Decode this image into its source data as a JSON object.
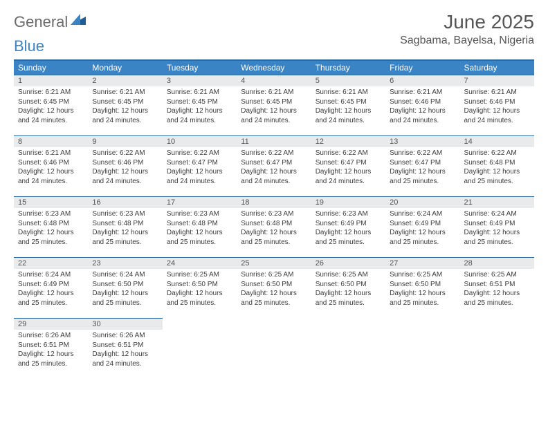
{
  "brand": {
    "general": "General",
    "blue": "Blue"
  },
  "colors": {
    "header_bg": "#3a84c5",
    "header_text": "#ffffff",
    "daynum_bg": "#e8eaec",
    "border": "#2b6aa0",
    "title": "#555555",
    "body_text": "#3b3b3b"
  },
  "title": "June 2025",
  "location": "Sagbama, Bayelsa, Nigeria",
  "weekdays": [
    "Sunday",
    "Monday",
    "Tuesday",
    "Wednesday",
    "Thursday",
    "Friday",
    "Saturday"
  ],
  "days": [
    {
      "n": "1",
      "sr": "6:21 AM",
      "ss": "6:45 PM",
      "dl": "12 hours and 24 minutes."
    },
    {
      "n": "2",
      "sr": "6:21 AM",
      "ss": "6:45 PM",
      "dl": "12 hours and 24 minutes."
    },
    {
      "n": "3",
      "sr": "6:21 AM",
      "ss": "6:45 PM",
      "dl": "12 hours and 24 minutes."
    },
    {
      "n": "4",
      "sr": "6:21 AM",
      "ss": "6:45 PM",
      "dl": "12 hours and 24 minutes."
    },
    {
      "n": "5",
      "sr": "6:21 AM",
      "ss": "6:45 PM",
      "dl": "12 hours and 24 minutes."
    },
    {
      "n": "6",
      "sr": "6:21 AM",
      "ss": "6:46 PM",
      "dl": "12 hours and 24 minutes."
    },
    {
      "n": "7",
      "sr": "6:21 AM",
      "ss": "6:46 PM",
      "dl": "12 hours and 24 minutes."
    },
    {
      "n": "8",
      "sr": "6:21 AM",
      "ss": "6:46 PM",
      "dl": "12 hours and 24 minutes."
    },
    {
      "n": "9",
      "sr": "6:22 AM",
      "ss": "6:46 PM",
      "dl": "12 hours and 24 minutes."
    },
    {
      "n": "10",
      "sr": "6:22 AM",
      "ss": "6:47 PM",
      "dl": "12 hours and 24 minutes."
    },
    {
      "n": "11",
      "sr": "6:22 AM",
      "ss": "6:47 PM",
      "dl": "12 hours and 24 minutes."
    },
    {
      "n": "12",
      "sr": "6:22 AM",
      "ss": "6:47 PM",
      "dl": "12 hours and 24 minutes."
    },
    {
      "n": "13",
      "sr": "6:22 AM",
      "ss": "6:47 PM",
      "dl": "12 hours and 25 minutes."
    },
    {
      "n": "14",
      "sr": "6:22 AM",
      "ss": "6:48 PM",
      "dl": "12 hours and 25 minutes."
    },
    {
      "n": "15",
      "sr": "6:23 AM",
      "ss": "6:48 PM",
      "dl": "12 hours and 25 minutes."
    },
    {
      "n": "16",
      "sr": "6:23 AM",
      "ss": "6:48 PM",
      "dl": "12 hours and 25 minutes."
    },
    {
      "n": "17",
      "sr": "6:23 AM",
      "ss": "6:48 PM",
      "dl": "12 hours and 25 minutes."
    },
    {
      "n": "18",
      "sr": "6:23 AM",
      "ss": "6:48 PM",
      "dl": "12 hours and 25 minutes."
    },
    {
      "n": "19",
      "sr": "6:23 AM",
      "ss": "6:49 PM",
      "dl": "12 hours and 25 minutes."
    },
    {
      "n": "20",
      "sr": "6:24 AM",
      "ss": "6:49 PM",
      "dl": "12 hours and 25 minutes."
    },
    {
      "n": "21",
      "sr": "6:24 AM",
      "ss": "6:49 PM",
      "dl": "12 hours and 25 minutes."
    },
    {
      "n": "22",
      "sr": "6:24 AM",
      "ss": "6:49 PM",
      "dl": "12 hours and 25 minutes."
    },
    {
      "n": "23",
      "sr": "6:24 AM",
      "ss": "6:50 PM",
      "dl": "12 hours and 25 minutes."
    },
    {
      "n": "24",
      "sr": "6:25 AM",
      "ss": "6:50 PM",
      "dl": "12 hours and 25 minutes."
    },
    {
      "n": "25",
      "sr": "6:25 AM",
      "ss": "6:50 PM",
      "dl": "12 hours and 25 minutes."
    },
    {
      "n": "26",
      "sr": "6:25 AM",
      "ss": "6:50 PM",
      "dl": "12 hours and 25 minutes."
    },
    {
      "n": "27",
      "sr": "6:25 AM",
      "ss": "6:50 PM",
      "dl": "12 hours and 25 minutes."
    },
    {
      "n": "28",
      "sr": "6:25 AM",
      "ss": "6:51 PM",
      "dl": "12 hours and 25 minutes."
    },
    {
      "n": "29",
      "sr": "6:26 AM",
      "ss": "6:51 PM",
      "dl": "12 hours and 25 minutes."
    },
    {
      "n": "30",
      "sr": "6:26 AM",
      "ss": "6:51 PM",
      "dl": "12 hours and 24 minutes."
    }
  ],
  "labels": {
    "sunrise": "Sunrise:",
    "sunset": "Sunset:",
    "daylight": "Daylight:"
  },
  "layout": {
    "start_offset": 0,
    "cols": 7
  }
}
